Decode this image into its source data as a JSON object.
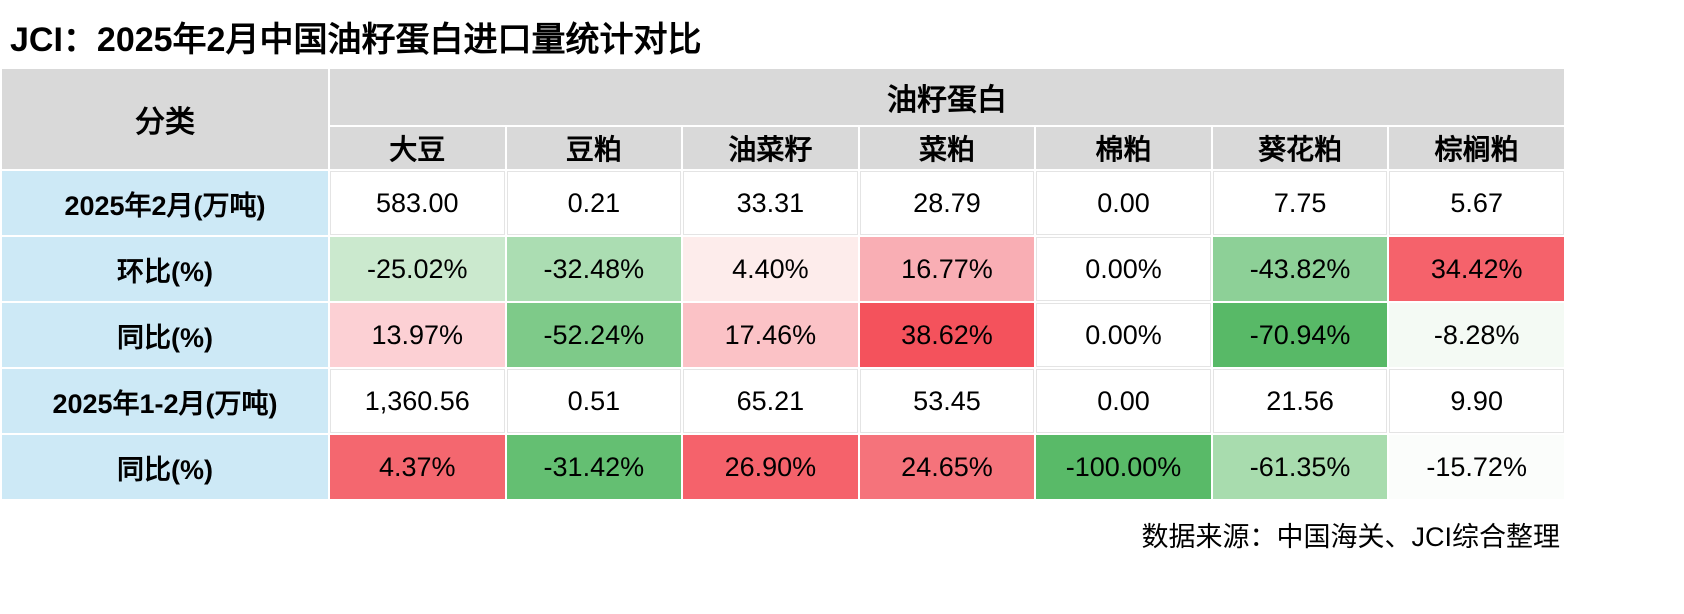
{
  "colors": {
    "header_bg": "#d9d9d9",
    "row_label_bg": "#cde9f6",
    "grid_white": "#ffffff",
    "plain_cell_border": "#e4e4e4",
    "text": "#000000"
  },
  "chart_data": {
    "type": "table",
    "title": "JCI：2025年2月中国油籽蛋白进口量统计对比",
    "row_header": "分类",
    "group_header": "油籽蛋白",
    "columns": [
      "大豆",
      "豆粕",
      "油菜籽",
      "菜粕",
      "棉粕",
      "葵花粕",
      "棕榈粕"
    ],
    "rows": [
      {
        "label": "2025年2月(万吨)",
        "values": [
          "583.00",
          "0.21",
          "33.31",
          "28.79",
          "0.00",
          "7.75",
          "5.67"
        ],
        "colors": [
          "#ffffff",
          "#ffffff",
          "#ffffff",
          "#ffffff",
          "#ffffff",
          "#ffffff",
          "#ffffff"
        ]
      },
      {
        "label": "环比(%)",
        "values": [
          "-25.02%",
          "-32.48%",
          "4.40%",
          "16.77%",
          "0.00%",
          "-43.82%",
          "34.42%"
        ],
        "colors": [
          "#cbe9ce",
          "#abddb2",
          "#fdeceb",
          "#f9aeb4",
          "#ffffff",
          "#8dd097",
          "#f5626b"
        ]
      },
      {
        "label": "同比(%)",
        "values": [
          "13.97%",
          "-52.24%",
          "17.46%",
          "38.62%",
          "0.00%",
          "-70.94%",
          "-8.28%"
        ],
        "colors": [
          "#fcd0d4",
          "#7eca89",
          "#fbc2c6",
          "#f4525c",
          "#ffffff",
          "#58b967",
          "#f4faf4"
        ]
      },
      {
        "label": "2025年1-2月(万吨)",
        "values": [
          "1,360.56",
          "0.51",
          "65.21",
          "53.45",
          "0.00",
          "21.56",
          "9.90"
        ],
        "colors": [
          "#ffffff",
          "#ffffff",
          "#ffffff",
          "#ffffff",
          "#ffffff",
          "#ffffff",
          "#ffffff"
        ]
      },
      {
        "label": "同比(%)",
        "values": [
          "4.37%",
          "-31.42%",
          "26.90%",
          "24.65%",
          "-100.00%",
          "-61.35%",
          "-15.72%"
        ],
        "colors": [
          "#f4676f",
          "#64bf72",
          "#f5626b",
          "#f5737b",
          "#59ba68",
          "#a8dcae",
          "#fbfdfb"
        ]
      }
    ],
    "source_note": "数据来源：中国海关、JCI综合整理"
  }
}
